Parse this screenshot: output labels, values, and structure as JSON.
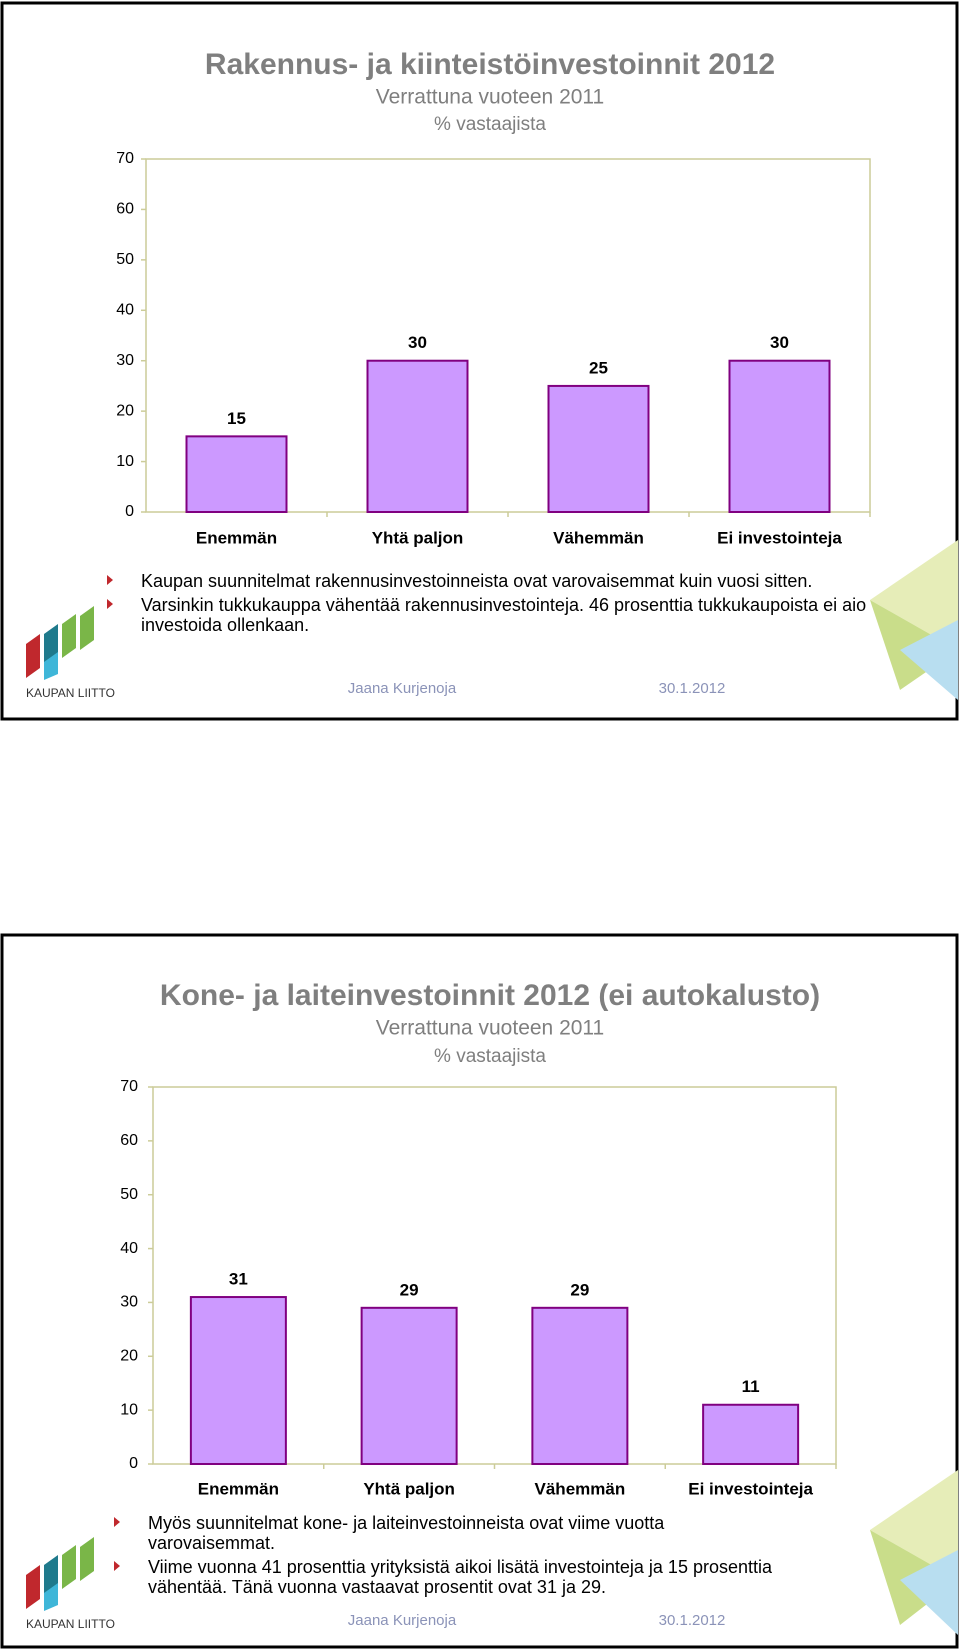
{
  "chart_data": [
    {
      "type": "bar",
      "title": "Rakennus- ja kiinteistöinvestoinnit 2012",
      "subtitle": "Verrattuna vuoteen 2011",
      "unit_label": "% vastaajista",
      "categories": [
        "Enemmän",
        "Yhtä paljon",
        "Vähemmän",
        "Ei investointeja"
      ],
      "values": [
        15,
        30,
        25,
        30
      ],
      "color": "#cc99ff",
      "edge_color": "#800080",
      "ylim": [
        0,
        70
      ],
      "yticks": [
        0,
        10,
        20,
        30,
        40,
        50,
        60,
        70
      ],
      "grid": false
    },
    {
      "type": "bar",
      "title": "Kone- ja laiteinvestoinnit 2012 (ei autokalusto)",
      "subtitle": "Verrattuna vuoteen 2011",
      "unit_label": "% vastaajista",
      "categories": [
        "Enemmän",
        "Yhtä paljon",
        "Vähemmän",
        "Ei investointeja"
      ],
      "values": [
        31,
        29,
        29,
        11
      ],
      "color": "#cc99ff",
      "edge_color": "#800080",
      "ylim": [
        0,
        70
      ],
      "yticks": [
        0,
        10,
        20,
        30,
        40,
        50,
        60,
        70
      ],
      "grid": false
    }
  ],
  "slides": [
    {
      "bullets": [
        "Kaupan suunnitelmat rakennusinvestoinneista ovat varovaisemmat kuin vuosi sitten.",
        "Varsinkin tukkukauppa vähentää rakennusinvestointeja. 46 prosenttia tukkukaupoista ei aio investoida ollenkaan."
      ],
      "author": "Jaana Kurjenoja",
      "date": "30.1.2012",
      "logo": "KAUPAN LIITTO"
    },
    {
      "bullets": [
        "Myös suunnitelmat kone- ja laiteinvestoinneista ovat viime vuotta varovaisemmat.",
        "Viime vuonna 41 prosenttia yrityksistä aikoi lisätä investointeja ja 15 prosenttia vähentää. Tänä vuonna vastaavat prosentit ovat 31 ja 29."
      ],
      "author": "Jaana Kurjenoja",
      "date": "30.1.2012",
      "logo": "KAUPAN LIITTO"
    }
  ]
}
